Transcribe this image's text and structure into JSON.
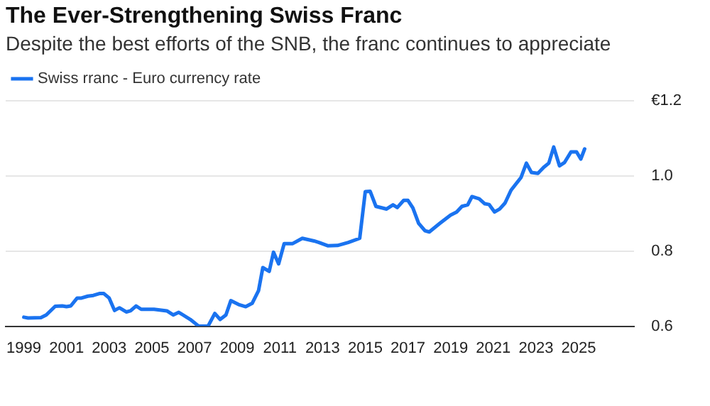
{
  "chart_data": {
    "type": "line",
    "title": "The Ever-Strengthening Swiss Franc",
    "subtitle": "Despite the best efforts of the SNB, the franc continues to appreciate",
    "series": [
      {
        "name": "Swiss rranc - Euro currency rate",
        "color": "#1a73f0",
        "x": [
          1999.0,
          1999.2,
          1999.8,
          2000.05,
          2000.47,
          2000.8,
          2001.0,
          2001.2,
          2001.5,
          2001.7,
          2002.0,
          2002.26,
          2002.54,
          2002.75,
          2003.0,
          2003.25,
          2003.48,
          2003.8,
          2004.0,
          2004.26,
          2004.5,
          2005.1,
          2005.7,
          2006.0,
          2006.26,
          2006.8,
          2007.2,
          2007.63,
          2007.95,
          2008.2,
          2008.47,
          2008.7,
          2009.1,
          2009.4,
          2009.7,
          2010.0,
          2010.2,
          2010.5,
          2010.7,
          2010.94,
          2011.2,
          2011.6,
          2012.05,
          2012.6,
          2012.83,
          2013.26,
          2013.7,
          2014.2,
          2014.74,
          2015.0,
          2015.23,
          2015.5,
          2016.0,
          2016.3,
          2016.5,
          2016.8,
          2017.0,
          2017.23,
          2017.5,
          2017.8,
          2018.0,
          2018.5,
          2019.0,
          2019.28,
          2019.53,
          2019.8,
          2020.0,
          2020.34,
          2020.6,
          2020.8,
          2021.06,
          2021.3,
          2021.55,
          2021.83,
          2022.3,
          2022.55,
          2022.79,
          2023.09,
          2023.36,
          2023.6,
          2023.83,
          2024.1,
          2024.34,
          2024.64,
          2024.9,
          2025.1,
          2025.28
        ],
        "values": [
          0.624,
          0.622,
          0.623,
          0.63,
          0.653,
          0.654,
          0.652,
          0.654,
          0.675,
          0.675,
          0.68,
          0.682,
          0.687,
          0.687,
          0.675,
          0.642,
          0.649,
          0.638,
          0.641,
          0.654,
          0.645,
          0.645,
          0.641,
          0.63,
          0.637,
          0.618,
          0.6,
          0.6,
          0.634,
          0.618,
          0.63,
          0.668,
          0.657,
          0.652,
          0.661,
          0.695,
          0.756,
          0.746,
          0.797,
          0.766,
          0.82,
          0.82,
          0.834,
          0.827,
          0.823,
          0.814,
          0.815,
          0.823,
          0.834,
          0.958,
          0.959,
          0.919,
          0.912,
          0.923,
          0.916,
          0.935,
          0.935,
          0.915,
          0.874,
          0.854,
          0.851,
          0.874,
          0.896,
          0.904,
          0.919,
          0.923,
          0.945,
          0.939,
          0.926,
          0.924,
          0.904,
          0.912,
          0.928,
          0.962,
          0.996,
          1.034,
          1.009,
          1.007,
          1.023,
          1.034,
          1.077,
          1.027,
          1.036,
          1.064,
          1.064,
          1.045,
          1.072
        ]
      }
    ],
    "xlim": [
      1998.15,
      2027.6
    ],
    "xticks": [
      1999,
      2001,
      2003,
      2005,
      2007,
      2009,
      2011,
      2013,
      2015,
      2017,
      2019,
      2021,
      2023,
      2025
    ],
    "ylim": [
      0.6,
      1.2
    ],
    "yticks": [
      0.6,
      0.8,
      {
        "value": 1,
        "label": "1.0"
      },
      {
        "value": 1.2,
        "label": "€1.2"
      }
    ],
    "grid": "y",
    "legend": "top left",
    "marker": "none",
    "line_style": "solid"
  }
}
